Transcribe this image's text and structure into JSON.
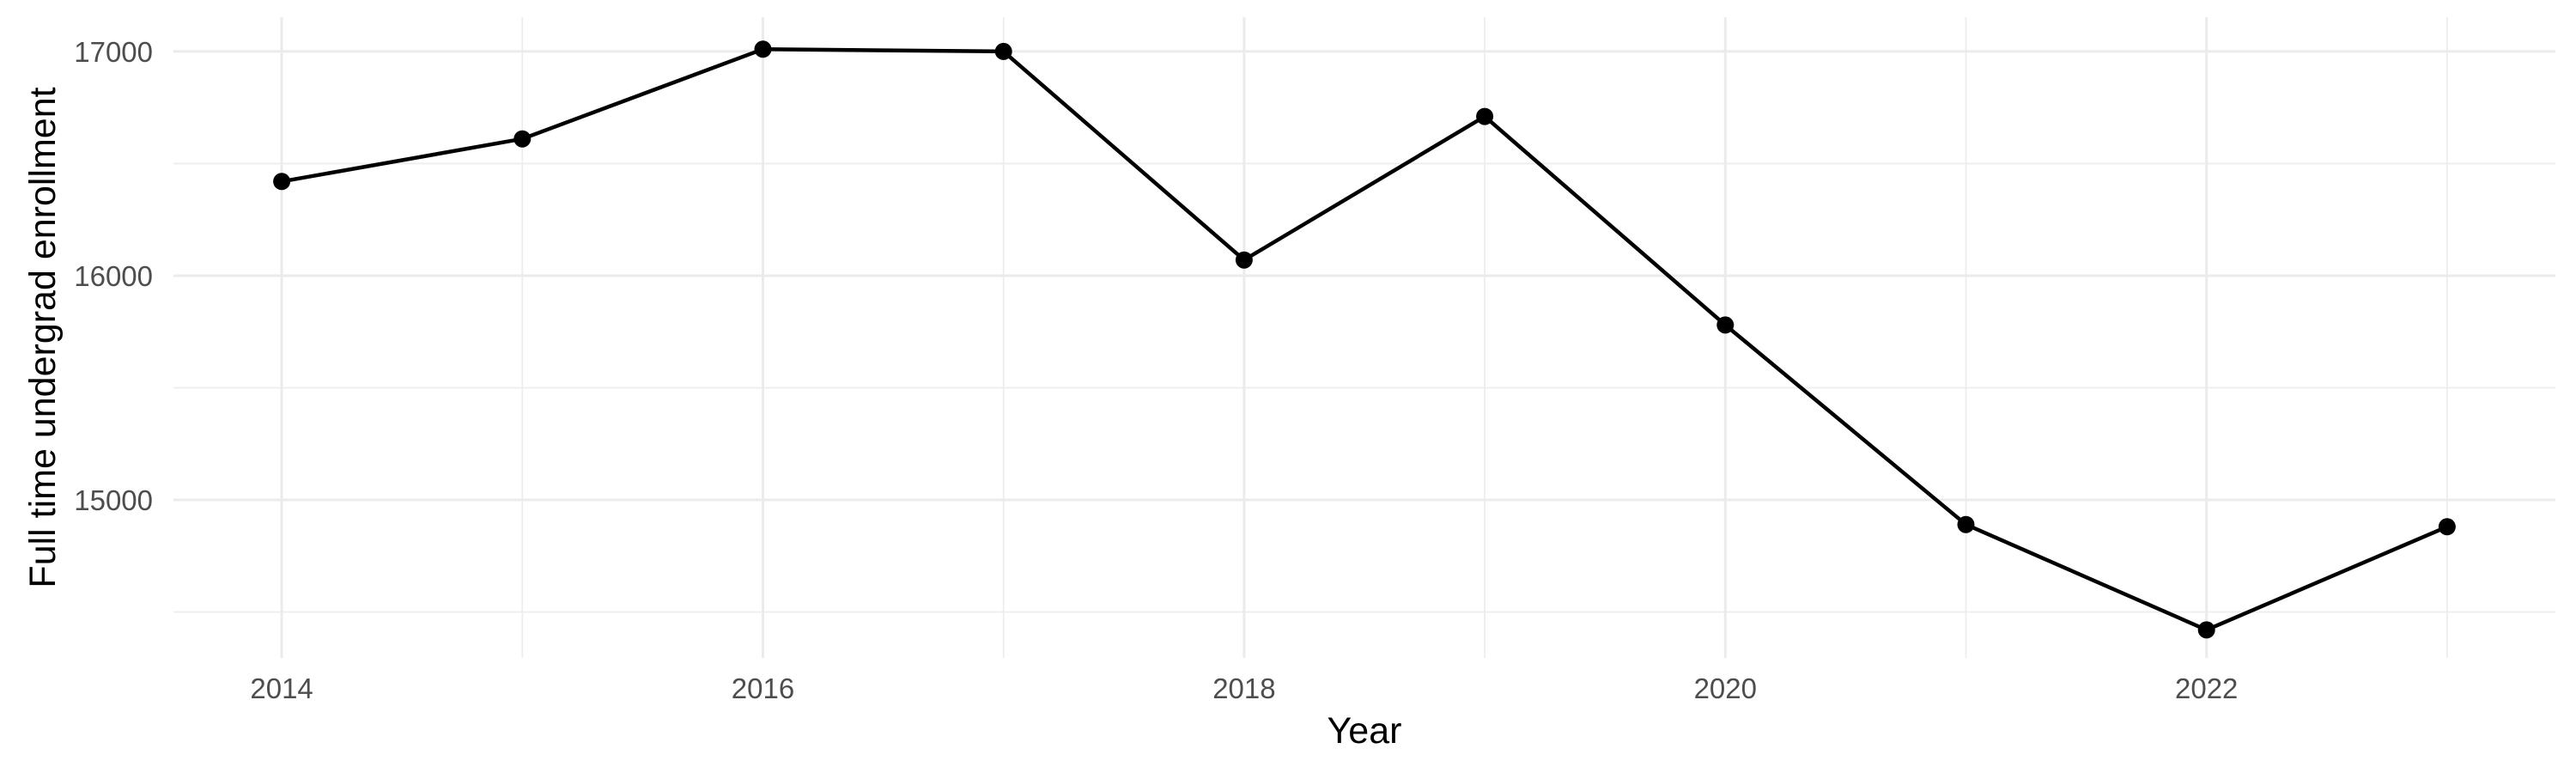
{
  "chart_data": {
    "type": "line",
    "title": "",
    "xlabel": "Year",
    "ylabel": "Full time undergrad enrollment",
    "x": [
      2014,
      2015,
      2016,
      2017,
      2018,
      2019,
      2020,
      2021,
      2022,
      2023
    ],
    "values": [
      16420,
      16610,
      17010,
      17000,
      16070,
      16710,
      15780,
      14890,
      14420,
      14880
    ],
    "series_name": "Full time undergrad enrollment",
    "x_tick_values": [
      2014,
      2016,
      2018,
      2020,
      2022
    ],
    "x_tick_labels": [
      "2014",
      "2016",
      "2018",
      "2020",
      "2022"
    ],
    "y_tick_values": [
      15000,
      16000,
      17000
    ],
    "y_tick_labels": [
      "15000",
      "16000",
      "17000"
    ],
    "x_minor_grid": [
      2015,
      2017,
      2019,
      2021,
      2023
    ],
    "y_minor_grid": [
      14500,
      15500,
      16500
    ],
    "xlim": [
      2013.55,
      2023.45
    ],
    "ylim": [
      14295,
      17153
    ],
    "grid": true,
    "legend": "none",
    "marker": "point",
    "colors": {
      "line": "#000000",
      "point": "#000000",
      "grid_major": "#EBEBEB",
      "grid_minor": "#EDEDED",
      "tick_label": "#4D4D4D",
      "axis_title": "#000000",
      "background": "#FFFFFF"
    }
  }
}
